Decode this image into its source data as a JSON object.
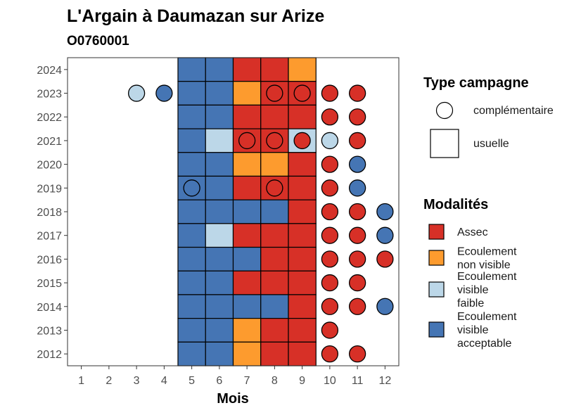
{
  "chart_data": {
    "type": "heatmap",
    "title": "L'Argain à Daumazan sur Arize",
    "subtitle": "O0760001",
    "xlabel": "Mois",
    "ylabel": "",
    "x_ticks": [
      1,
      2,
      3,
      4,
      5,
      6,
      7,
      8,
      9,
      10,
      11,
      12
    ],
    "y_ticks": [
      2012,
      2013,
      2014,
      2015,
      2016,
      2017,
      2018,
      2019,
      2020,
      2021,
      2022,
      2023,
      2024
    ],
    "xlim": [
      0.5,
      12.5
    ],
    "ylim": [
      2011.5,
      2024.5
    ],
    "legend_type": {
      "title": "Type campagne",
      "entries": [
        {
          "key": "complementaire",
          "label": "complémentaire",
          "shape": "circle"
        },
        {
          "key": "usuelle",
          "label": "usuelle",
          "shape": "square"
        }
      ]
    },
    "legend_modalites": {
      "title": "Modalités",
      "entries": [
        {
          "key": "assec",
          "label_lines": [
            "Assec"
          ],
          "color": "#d73027"
        },
        {
          "key": "ecoulement_non_visible",
          "label_lines": [
            "Ecoulement",
            "non visible"
          ],
          "color": "#fd9b2e"
        },
        {
          "key": "ecoulement_visible_faible",
          "label_lines": [
            "Ecoulement",
            "visible",
            "faible"
          ],
          "color": "#bcd7e8"
        },
        {
          "key": "ecoulement_visible_acceptable",
          "label_lines": [
            "Ecoulement",
            "visible",
            "acceptable"
          ],
          "color": "#4575b4"
        }
      ]
    },
    "usuelle": [
      {
        "year": 2024,
        "months": {
          "5": "ecoulement_visible_acceptable",
          "6": "ecoulement_visible_acceptable",
          "7": "assec",
          "8": "assec",
          "9": "ecoulement_non_visible"
        }
      },
      {
        "year": 2023,
        "months": {
          "5": "ecoulement_visible_acceptable",
          "6": "ecoulement_visible_acceptable",
          "7": "ecoulement_non_visible",
          "8": "assec",
          "9": "assec"
        }
      },
      {
        "year": 2022,
        "months": {
          "5": "ecoulement_visible_acceptable",
          "6": "ecoulement_visible_acceptable",
          "7": "assec",
          "8": "assec",
          "9": "assec"
        }
      },
      {
        "year": 2021,
        "months": {
          "5": "ecoulement_visible_acceptable",
          "6": "ecoulement_visible_faible",
          "7": "assec",
          "8": "assec",
          "9": "ecoulement_visible_faible"
        }
      },
      {
        "year": 2020,
        "months": {
          "5": "ecoulement_visible_acceptable",
          "6": "ecoulement_visible_acceptable",
          "7": "ecoulement_non_visible",
          "8": "ecoulement_non_visible",
          "9": "assec"
        }
      },
      {
        "year": 2019,
        "months": {
          "5": "ecoulement_visible_acceptable",
          "6": "ecoulement_visible_acceptable",
          "7": "assec",
          "8": "assec",
          "9": "assec"
        }
      },
      {
        "year": 2018,
        "months": {
          "5": "ecoulement_visible_acceptable",
          "6": "ecoulement_visible_acceptable",
          "7": "ecoulement_visible_acceptable",
          "8": "ecoulement_visible_acceptable",
          "9": "assec"
        }
      },
      {
        "year": 2017,
        "months": {
          "5": "ecoulement_visible_acceptable",
          "6": "ecoulement_visible_faible",
          "7": "assec",
          "8": "assec",
          "9": "assec"
        }
      },
      {
        "year": 2016,
        "months": {
          "5": "ecoulement_visible_acceptable",
          "6": "ecoulement_visible_acceptable",
          "7": "ecoulement_visible_acceptable",
          "8": "assec",
          "9": "assec"
        }
      },
      {
        "year": 2015,
        "months": {
          "5": "ecoulement_visible_acceptable",
          "6": "ecoulement_visible_acceptable",
          "7": "assec",
          "8": "assec",
          "9": "assec"
        }
      },
      {
        "year": 2014,
        "months": {
          "5": "ecoulement_visible_acceptable",
          "6": "ecoulement_visible_acceptable",
          "7": "ecoulement_visible_acceptable",
          "8": "ecoulement_visible_acceptable",
          "9": "assec"
        }
      },
      {
        "year": 2013,
        "months": {
          "5": "ecoulement_visible_acceptable",
          "6": "ecoulement_visible_acceptable",
          "7": "ecoulement_non_visible",
          "8": "assec",
          "9": "assec"
        }
      },
      {
        "year": 2012,
        "months": {
          "5": "ecoulement_visible_acceptable",
          "6": "ecoulement_visible_acceptable",
          "7": "ecoulement_non_visible",
          "8": "assec",
          "9": "assec"
        }
      }
    ],
    "complementaire": [
      {
        "year": 2023,
        "month": 3,
        "modalite": "ecoulement_visible_faible"
      },
      {
        "year": 2023,
        "month": 4,
        "modalite": "ecoulement_visible_acceptable"
      },
      {
        "year": 2023,
        "month": 8,
        "modalite": "assec"
      },
      {
        "year": 2023,
        "month": 9,
        "modalite": "assec"
      },
      {
        "year": 2023,
        "month": 10,
        "modalite": "assec"
      },
      {
        "year": 2023,
        "month": 11,
        "modalite": "assec"
      },
      {
        "year": 2022,
        "month": 10,
        "modalite": "assec"
      },
      {
        "year": 2022,
        "month": 11,
        "modalite": "assec"
      },
      {
        "year": 2021,
        "month": 7,
        "modalite": "assec"
      },
      {
        "year": 2021,
        "month": 8,
        "modalite": "assec"
      },
      {
        "year": 2021,
        "month": 9,
        "modalite": "assec"
      },
      {
        "year": 2021,
        "month": 10,
        "modalite": "ecoulement_visible_faible"
      },
      {
        "year": 2021,
        "month": 11,
        "modalite": "assec"
      },
      {
        "year": 2020,
        "month": 10,
        "modalite": "assec"
      },
      {
        "year": 2020,
        "month": 11,
        "modalite": "ecoulement_visible_acceptable"
      },
      {
        "year": 2019,
        "month": 5,
        "modalite": "ecoulement_visible_acceptable"
      },
      {
        "year": 2019,
        "month": 8,
        "modalite": "assec"
      },
      {
        "year": 2019,
        "month": 10,
        "modalite": "assec"
      },
      {
        "year": 2019,
        "month": 11,
        "modalite": "ecoulement_visible_acceptable"
      },
      {
        "year": 2018,
        "month": 10,
        "modalite": "assec"
      },
      {
        "year": 2018,
        "month": 11,
        "modalite": "assec"
      },
      {
        "year": 2018,
        "month": 12,
        "modalite": "ecoulement_visible_acceptable"
      },
      {
        "year": 2017,
        "month": 10,
        "modalite": "assec"
      },
      {
        "year": 2017,
        "month": 11,
        "modalite": "assec"
      },
      {
        "year": 2017,
        "month": 12,
        "modalite": "ecoulement_visible_acceptable"
      },
      {
        "year": 2016,
        "month": 10,
        "modalite": "assec"
      },
      {
        "year": 2016,
        "month": 11,
        "modalite": "assec"
      },
      {
        "year": 2016,
        "month": 12,
        "modalite": "assec"
      },
      {
        "year": 2015,
        "month": 10,
        "modalite": "assec"
      },
      {
        "year": 2015,
        "month": 11,
        "modalite": "assec"
      },
      {
        "year": 2014,
        "month": 10,
        "modalite": "assec"
      },
      {
        "year": 2014,
        "month": 11,
        "modalite": "assec"
      },
      {
        "year": 2014,
        "month": 12,
        "modalite": "ecoulement_visible_acceptable"
      },
      {
        "year": 2013,
        "month": 10,
        "modalite": "assec"
      },
      {
        "year": 2012,
        "month": 10,
        "modalite": "assec"
      },
      {
        "year": 2012,
        "month": 11,
        "modalite": "assec"
      }
    ]
  }
}
